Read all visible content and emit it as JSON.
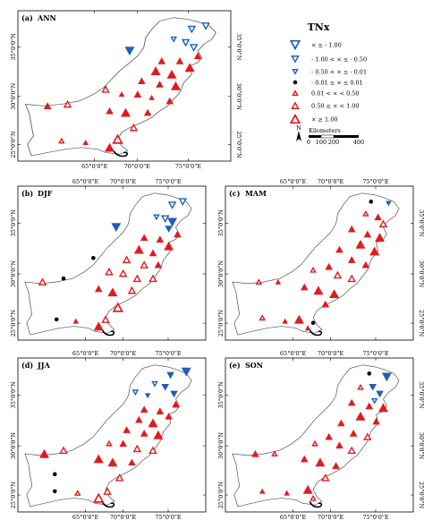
{
  "figure": {
    "variable": "TNx",
    "lon_ticks": [
      "65°0'0\"E",
      "70°0'0\"E",
      "75°0'0\"E"
    ],
    "lat_ticks": [
      "35°0'0\"N",
      "30°0'0\"N",
      "25°0'0\"N"
    ]
  },
  "panels": [
    {
      "id": "a",
      "label": "(a)",
      "season": "ANN"
    },
    {
      "id": "b",
      "label": "(b)",
      "season": "DJF"
    },
    {
      "id": "c",
      "label": "(c)",
      "season": "MAM"
    },
    {
      "id": "d",
      "label": "(d)",
      "season": "JJA"
    },
    {
      "id": "e",
      "label": "(e)",
      "season": "SON"
    }
  ],
  "legend": {
    "title": "TNx",
    "classes": [
      {
        "label": "× ≤ - 1.00",
        "symbol": "down-triangle",
        "fill": "none",
        "color": "#1f5fb4",
        "size": "large"
      },
      {
        "label": "- 1.00 < × ≤ - 0.50",
        "symbol": "down-triangle",
        "fill": "none",
        "color": "#1f5fb4",
        "size": "medium"
      },
      {
        "label": "- 0.50 < × ≤ - 0.01",
        "symbol": "down-triangle",
        "fill": "none",
        "color": "#1f5fb4",
        "size": "small"
      },
      {
        "label": "- 0.01 ≤ × ≤ 0.01",
        "symbol": "dot",
        "fill": "solid",
        "color": "#000000",
        "size": "small"
      },
      {
        "label": "0.01 < × < 0.50",
        "symbol": "up-triangle",
        "fill": "none",
        "color": "#e31a1c",
        "size": "small"
      },
      {
        "label": "0.50 ≤ × < 1.00",
        "symbol": "up-triangle",
        "fill": "none",
        "color": "#e31a1c",
        "size": "medium"
      },
      {
        "label": "× ≥ 1.00",
        "symbol": "up-triangle",
        "fill": "none",
        "color": "#e31a1c",
        "size": "large"
      }
    ],
    "north_label": "N",
    "scale_unit": "Kilometers",
    "scale_ticks": [
      "0",
      "100",
      "200",
      "400"
    ]
  },
  "colors": {
    "increase": "#e31a1c",
    "decrease": "#1f5fb4",
    "no_trend": "#000000",
    "boundary": "#555555"
  }
}
